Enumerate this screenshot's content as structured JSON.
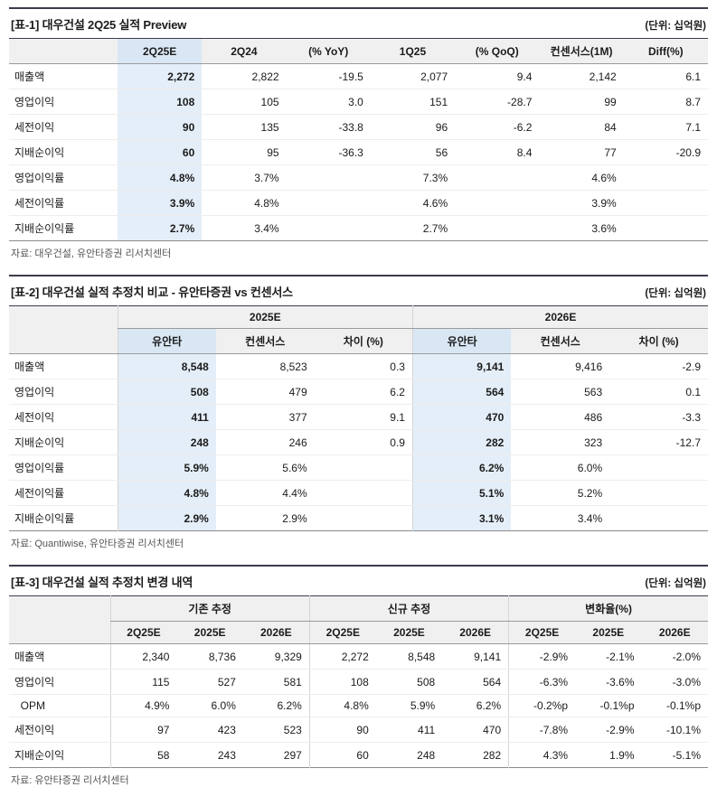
{
  "tables": [
    {
      "title": "[표-1] 대우건설 2Q25 실적 Preview",
      "unit": "(단위: 십억원)",
      "source": "자료: 대우건설, 유안타증권 리서치센터",
      "label_width": 120,
      "columns": [
        "",
        "2Q25E",
        "2Q24",
        "(% YoY)",
        "1Q25",
        "(% QoQ)",
        "컨센서스(1M)",
        "Diff(%)"
      ],
      "highlight_cols": [
        1
      ],
      "highlight_bold": true,
      "sep_cols": [],
      "separator_before_rows": [
        4
      ],
      "rows": [
        [
          "매출액",
          "2,272",
          "2,822",
          "-19.5",
          "2,077",
          "9.4",
          "2,142",
          "6.1"
        ],
        [
          "영업이익",
          "108",
          "105",
          "3.0",
          "151",
          "-28.7",
          "99",
          "8.7"
        ],
        [
          "세전이익",
          "90",
          "135",
          "-33.8",
          "96",
          "-6.2",
          "84",
          "7.1"
        ],
        [
          "지배순이익",
          "60",
          "95",
          "-36.3",
          "56",
          "8.4",
          "77",
          "-20.9"
        ],
        [
          "영업이익률",
          "4.8%",
          "3.7%",
          "",
          "7.3%",
          "",
          "4.6%",
          ""
        ],
        [
          "세전이익률",
          "3.9%",
          "4.8%",
          "",
          "4.6%",
          "",
          "3.9%",
          ""
        ],
        [
          "지배순이익률",
          "2.7%",
          "3.4%",
          "",
          "2.7%",
          "",
          "3.6%",
          ""
        ]
      ]
    },
    {
      "title": "[표-2] 대우건설 실적 추정치 비교 - 유안타증권 vs 컨센서스",
      "unit": "(단위: 십억원)",
      "source": "자료: Quantiwise, 유안타증권 리서치센터",
      "label_width": 120,
      "groups": [
        {
          "label": "",
          "span": 1,
          "sep": false
        },
        {
          "label": "2025E",
          "span": 3,
          "sep": true
        },
        {
          "label": "2026E",
          "span": 3,
          "sep": true
        }
      ],
      "columns": [
        "",
        "유안타",
        "컨센서스",
        "차이 (%)",
        "유안타",
        "컨센서스",
        "차이 (%)"
      ],
      "highlight_cols": [
        1,
        4
      ],
      "highlight_bold": true,
      "sep_cols": [
        1,
        4
      ],
      "separator_before_rows": [
        4
      ],
      "rows": [
        [
          "매출액",
          "8,548",
          "8,523",
          "0.3",
          "9,141",
          "9,416",
          "-2.9"
        ],
        [
          "영업이익",
          "508",
          "479",
          "6.2",
          "564",
          "563",
          "0.1"
        ],
        [
          "세전이익",
          "411",
          "377",
          "9.1",
          "470",
          "486",
          "-3.3"
        ],
        [
          "지배순이익",
          "248",
          "246",
          "0.9",
          "282",
          "323",
          "-12.7"
        ],
        [
          "영업이익률",
          "5.9%",
          "5.6%",
          "",
          "6.2%",
          "6.0%",
          ""
        ],
        [
          "세전이익률",
          "4.8%",
          "4.4%",
          "",
          "5.1%",
          "5.2%",
          ""
        ],
        [
          "지배순이익률",
          "2.9%",
          "2.9%",
          "",
          "3.1%",
          "3.4%",
          ""
        ]
      ]
    },
    {
      "title": "[표-3] 대우건설 실적 추정치 변경 내역",
      "unit": "(단위: 십억원)",
      "source": "자료: 유안타증권 리서치센터",
      "label_width": 112,
      "groups": [
        {
          "label": "",
          "span": 1,
          "sep": false
        },
        {
          "label": "기존 추정",
          "span": 3,
          "sep": true
        },
        {
          "label": "신규 추정",
          "span": 3,
          "sep": true
        },
        {
          "label": "변화율(%)",
          "span": 3,
          "sep": true
        }
      ],
      "columns": [
        "",
        "2Q25E",
        "2025E",
        "2026E",
        "2Q25E",
        "2025E",
        "2026E",
        "2Q25E",
        "2025E",
        "2026E"
      ],
      "highlight_cols": [],
      "highlight_bold": false,
      "sep_cols": [
        1,
        4,
        7
      ],
      "separator_before_rows": [],
      "rows": [
        [
          "매출액",
          "2,340",
          "8,736",
          "9,329",
          "2,272",
          "8,548",
          "9,141",
          "-2.9%",
          "-2.1%",
          "-2.0%"
        ],
        [
          "영업이익",
          "115",
          "527",
          "581",
          "108",
          "508",
          "564",
          "-6.3%",
          "-3.6%",
          "-3.0%"
        ],
        [
          "  OPM",
          "4.9%",
          "6.0%",
          "6.2%",
          "4.8%",
          "5.9%",
          "6.2%",
          "-0.2%p",
          "-0.1%p",
          "-0.1%p"
        ],
        [
          "세전이익",
          "97",
          "423",
          "523",
          "90",
          "411",
          "470",
          "-7.8%",
          "-2.9%",
          "-10.1%"
        ],
        [
          "지배순이익",
          "58",
          "243",
          "297",
          "60",
          "248",
          "282",
          "4.3%",
          "1.9%",
          "-5.1%"
        ]
      ]
    }
  ]
}
